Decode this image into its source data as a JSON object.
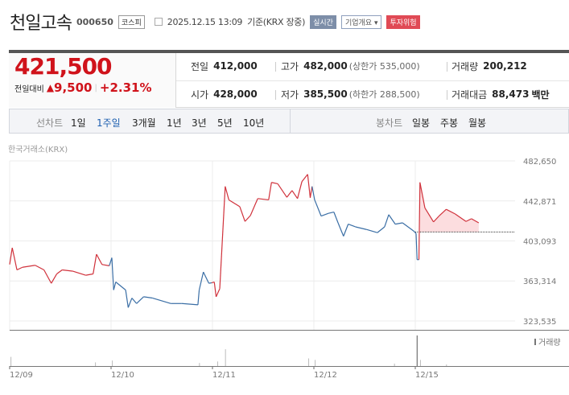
{
  "header": {
    "name": "천일고속",
    "code": "000650",
    "market": "코스피",
    "datetime": "2025.12.15 13:09",
    "basis": "기준(KRX 장중)",
    "realtime": "실시간",
    "company_info": "기업개요",
    "company_info_arrow": "▾",
    "warning": "투자위험"
  },
  "quote": {
    "price": "421,500",
    "change_label": "전일대비",
    "change_arrow": "▲",
    "change": "9,500",
    "change_pct": "+2.31%",
    "prev_label": "전일",
    "prev": "412,000",
    "high_label": "고가",
    "high": "482,000",
    "upper_limit": "(상한가 535,000)",
    "volume_label": "거래량",
    "volume": "200,212",
    "open_label": "시가",
    "open": "428,000",
    "low_label": "저가",
    "low": "385,500",
    "lower_limit": "(하한가 288,500)",
    "amount_label": "거래대금",
    "amount": "88,473",
    "amount_unit": "백만"
  },
  "tabs": {
    "line_label": "선차트",
    "line": [
      "1일",
      "1주일",
      "3개월",
      "1년",
      "3년",
      "5년",
      "10년"
    ],
    "selected": "1주일",
    "candle_label": "봉차트",
    "candle": [
      "일봉",
      "주봉",
      "월봉"
    ]
  },
  "chart_data": {
    "type": "line",
    "source": "한국거래소(KRX)",
    "volume_label": "거래량",
    "y_ticks": [
      482650,
      442871,
      403093,
      363314,
      323535
    ],
    "ylim": [
      323535,
      482650
    ],
    "x_ticks": [
      "12/09",
      "12/10",
      "12/11",
      "12/12",
      "12/15"
    ],
    "prev_close": 412000,
    "colors": {
      "up": "#d0313b",
      "down": "#3a6ea5",
      "fill": "#fbd4d7"
    },
    "days": [
      {
        "date": "12/09",
        "dir": "up",
        "points": [
          [
            "09:00",
            379700
          ],
          [
            "09:10",
            396300
          ],
          [
            "09:28",
            374300
          ],
          [
            "09:49",
            376900
          ],
          [
            "10:38",
            378900
          ],
          [
            "11:12",
            374300
          ],
          [
            "11:40",
            361000
          ],
          [
            "12:01",
            370300
          ],
          [
            "12:22",
            374300
          ],
          [
            "13:04",
            373000
          ],
          [
            "13:53",
            369000
          ],
          [
            "14:21",
            370300
          ],
          [
            "14:34",
            389900
          ],
          [
            "14:55",
            379700
          ],
          [
            "15:23",
            378400
          ]
        ]
      },
      {
        "date": "12/10",
        "dir": "down",
        "points": [
          [
            "09:03",
            386400
          ],
          [
            "09:10",
            354300
          ],
          [
            "09:18",
            362300
          ],
          [
            "09:56",
            354300
          ],
          [
            "10:06",
            336900
          ],
          [
            "10:20",
            346300
          ],
          [
            "10:38",
            340900
          ],
          [
            "11:05",
            347600
          ],
          [
            "11:40",
            346300
          ],
          [
            "12:50",
            340900
          ],
          [
            "13:32",
            340900
          ],
          [
            "14:34",
            339600
          ],
          [
            "14:39",
            354300
          ],
          [
            "14:55",
            372200
          ],
          [
            "15:16",
            361000
          ],
          [
            "15:27",
            361500
          ]
        ]
      },
      {
        "date": "12/11",
        "dir": "up",
        "points": [
          [
            "09:07",
            362300
          ],
          [
            "09:14",
            347600
          ],
          [
            "09:28",
            355600
          ],
          [
            "09:49",
            457250
          ],
          [
            "10:03",
            443900
          ],
          [
            "10:45",
            437200
          ],
          [
            "11:05",
            422500
          ],
          [
            "11:26",
            428400
          ],
          [
            "11:54",
            445200
          ],
          [
            "12:36",
            443900
          ],
          [
            "12:47",
            461250
          ],
          [
            "13:11",
            459900
          ],
          [
            "13:46",
            446500
          ],
          [
            "14:06",
            453200
          ],
          [
            "14:27",
            445200
          ],
          [
            "14:44",
            462100
          ],
          [
            "15:06",
            469300
          ],
          [
            "15:16",
            446000
          ],
          [
            "15:23",
            457250
          ]
        ]
      },
      {
        "date": "12/12",
        "dir": "down",
        "points": [
          [
            "09:03",
            443900
          ],
          [
            "09:28",
            427800
          ],
          [
            "09:56",
            430500
          ],
          [
            "10:17",
            431800
          ],
          [
            "10:33",
            421100
          ],
          [
            "10:54",
            407800
          ],
          [
            "11:12",
            419800
          ],
          [
            "11:40",
            417100
          ],
          [
            "12:22",
            414500
          ],
          [
            "13:04",
            411300
          ],
          [
            "13:32",
            417100
          ],
          [
            "13:48",
            429200
          ],
          [
            "14:13",
            419800
          ],
          [
            "14:41",
            421100
          ],
          [
            "15:23",
            413100
          ]
        ]
      },
      {
        "date": "12/15",
        "dir": "up",
        "points": [
          [
            "09:03",
            410500
          ],
          [
            "09:07",
            384500
          ],
          [
            "09:14",
            384500
          ],
          [
            "09:18",
            461250
          ],
          [
            "09:37",
            435900
          ],
          [
            "10:10",
            422000
          ],
          [
            "10:31",
            427800
          ],
          [
            "10:59",
            434500
          ],
          [
            "11:33",
            430000
          ],
          [
            "12:15",
            422500
          ],
          [
            "12:36",
            425200
          ],
          [
            "13:04",
            421100
          ]
        ]
      }
    ],
    "volume": [
      [
        "12/09",
        "09:05",
        0.3
      ],
      [
        "12/09",
        "14:30",
        0.12
      ],
      [
        "12/10",
        "09:05",
        0.18
      ],
      [
        "12/10",
        "14:40",
        0.1
      ],
      [
        "12/11",
        "09:50",
        0.55
      ],
      [
        "12/11",
        "09:20",
        0.15
      ],
      [
        "12/11",
        "15:10",
        0.25
      ],
      [
        "12/12",
        "09:05",
        0.2
      ],
      [
        "12/12",
        "14:10",
        0.08
      ],
      [
        "12/15",
        "09:07",
        1.0
      ],
      [
        "12/15",
        "09:20",
        0.2
      ],
      [
        "12/15",
        "11:00",
        0.05
      ]
    ]
  }
}
